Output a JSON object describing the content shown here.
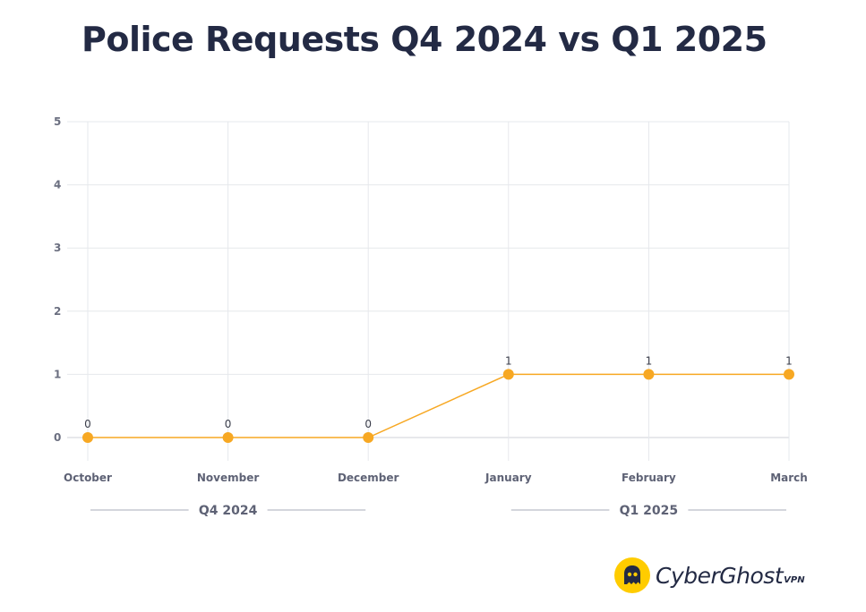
{
  "title": "Police Requests Q4 2024 vs Q1 2025",
  "chart_data": {
    "type": "line",
    "title": "Police Requests Q4 2024 vs Q1 2025",
    "categories": [
      "October",
      "November",
      "December",
      "January",
      "February",
      "March"
    ],
    "series": [
      {
        "values": [
          0,
          0,
          0,
          1,
          1,
          1
        ],
        "color": "#f7a823"
      }
    ],
    "data_labels": [
      "0",
      "0",
      "0",
      "1",
      "1",
      "1"
    ],
    "y_ticks": [
      "0",
      "1",
      "2",
      "3",
      "4",
      "5"
    ],
    "ylim": [
      0,
      5
    ],
    "grid": true,
    "groups": [
      {
        "label": "Q4 2024",
        "from": "October",
        "to": "December"
      },
      {
        "label": "Q1 2025",
        "from": "January",
        "to": "March"
      }
    ],
    "xlabel": "",
    "ylabel": ""
  },
  "brand": {
    "name": "CyberGhost",
    "suffix": "VPN",
    "badge_color": "#ffcc00"
  }
}
